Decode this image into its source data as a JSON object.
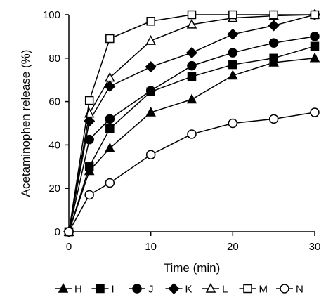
{
  "chart_data": {
    "type": "line",
    "title": "",
    "xlabel": "Time (min)",
    "ylabel": "Acetaminophen release (%)",
    "xlim": [
      0,
      30
    ],
    "ylim": [
      0,
      100
    ],
    "x_ticks": [
      "0",
      "10",
      "20",
      "30"
    ],
    "y_ticks": [
      "0",
      "20",
      "40",
      "60",
      "80",
      "100"
    ],
    "grid": false,
    "legend_position": "bottom",
    "x": [
      0,
      2.5,
      5,
      10,
      15,
      20,
      25,
      30
    ],
    "series": [
      {
        "name": "H",
        "marker": "triangle-filled",
        "values": [
          0,
          28,
          38.5,
          55,
          61,
          72,
          78,
          80
        ]
      },
      {
        "name": "I",
        "marker": "square-filled",
        "values": [
          0,
          30,
          47.5,
          64.5,
          71.5,
          77,
          80,
          85.5
        ]
      },
      {
        "name": "J",
        "marker": "circle-filled",
        "values": [
          0,
          42.5,
          52,
          65,
          76.5,
          82.5,
          87,
          90
        ]
      },
      {
        "name": "K",
        "marker": "diamond-filled",
        "values": [
          0,
          51,
          67,
          76,
          82.5,
          91,
          95,
          100
        ]
      },
      {
        "name": "L",
        "marker": "triangle-open",
        "values": [
          0,
          54.5,
          71,
          88,
          95.5,
          98.5,
          99.5,
          100
        ]
      },
      {
        "name": "M",
        "marker": "square-open",
        "values": [
          0,
          60.5,
          89,
          97,
          100,
          100,
          100,
          100
        ]
      },
      {
        "name": "N",
        "marker": "circle-open",
        "values": [
          0,
          17,
          22.5,
          35.5,
          45,
          50,
          52,
          55
        ]
      }
    ]
  }
}
